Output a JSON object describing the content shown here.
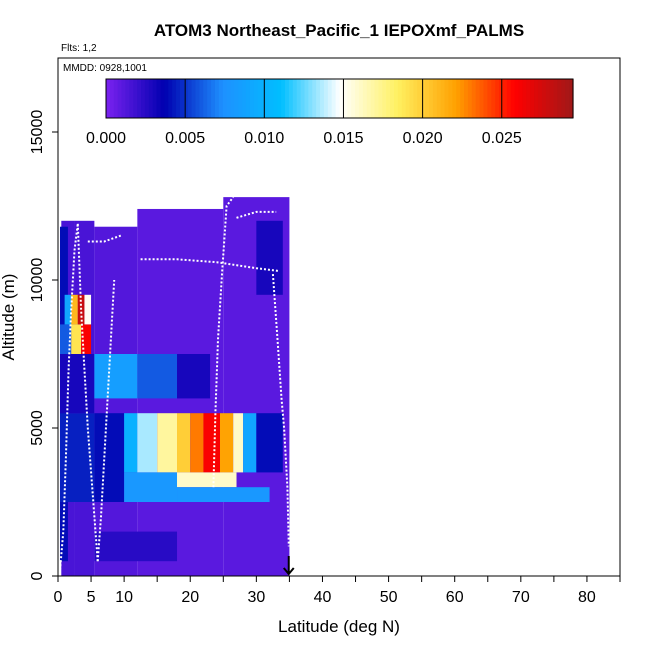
{
  "chart_data": {
    "type": "heatmap",
    "title": "ATOM3 Northeast_Pacific_1 IEPOXmf_PALMS",
    "annotations": [
      "Flts: 1,2",
      "MMDD: 0928,1001"
    ],
    "xlabel": "Latitude (deg N)",
    "ylabel": "Altitude (m)",
    "xlim": [
      0,
      85
    ],
    "ylim": [
      0,
      17500
    ],
    "x_ticks": [
      0,
      5,
      10,
      20,
      30,
      40,
      50,
      60,
      70,
      80
    ],
    "x_minor_ticks": [
      15,
      25,
      35,
      45,
      55,
      65,
      75,
      85
    ],
    "y_ticks": [
      0,
      5000,
      10000,
      15000
    ],
    "colorbar": {
      "range": [
        0,
        0.0295
      ],
      "ticks": [
        0.0,
        0.005,
        0.01,
        0.015,
        0.02,
        0.025
      ],
      "tick_labels": [
        "0.000",
        "0.005",
        "0.010",
        "0.015",
        "0.020",
        "0.025"
      ],
      "colors": [
        "#7b22f0",
        "#0000b0",
        "#1e90ff",
        "#00bfff",
        "#ffffff",
        "#fff060",
        "#ffa000",
        "#ff0000",
        "#a01818"
      ]
    },
    "cells": [
      {
        "x0": 0.5,
        "x1": 2.5,
        "y0": 0,
        "y1": 12000,
        "v": 0.0015
      },
      {
        "x0": 2.5,
        "x1": 5.5,
        "y0": 0,
        "y1": 12000,
        "v": 0.0015
      },
      {
        "x0": 5.5,
        "x1": 12,
        "y0": 0,
        "y1": 11800,
        "v": 0.0012
      },
      {
        "x0": 12,
        "x1": 25,
        "y0": 0,
        "y1": 12400,
        "v": 0.001
      },
      {
        "x0": 25,
        "x1": 35,
        "y0": 0,
        "y1": 12800,
        "v": 0.001
      },
      {
        "x0": 0.3,
        "x1": 1.5,
        "y0": 500,
        "y1": 11800,
        "v": 0.004
      },
      {
        "x0": 0.3,
        "x1": 5.5,
        "y0": 2500,
        "y1": 5500,
        "v": 0.0045
      },
      {
        "x0": 0.3,
        "x1": 5.5,
        "y0": 5500,
        "y1": 7500,
        "v": 0.003
      },
      {
        "x0": 0.3,
        "x1": 2,
        "y0": 7500,
        "y1": 8500,
        "v": 0.006
      },
      {
        "x0": 2,
        "x1": 3.5,
        "y0": 7500,
        "y1": 8500,
        "v": 0.019
      },
      {
        "x0": 3.5,
        "x1": 5,
        "y0": 7500,
        "y1": 8500,
        "v": 0.026
      },
      {
        "x0": 1,
        "x1": 2,
        "y0": 8500,
        "y1": 9500,
        "v": 0.009
      },
      {
        "x0": 2,
        "x1": 3,
        "y0": 8500,
        "y1": 9500,
        "v": 0.021
      },
      {
        "x0": 3,
        "x1": 4,
        "y0": 8500,
        "y1": 9500,
        "v": 0.028
      },
      {
        "x0": 4,
        "x1": 5,
        "y0": 8500,
        "y1": 9500,
        "v": 0.015
      },
      {
        "x0": 5.5,
        "x1": 12,
        "y0": 6000,
        "y1": 7500,
        "v": 0.0085
      },
      {
        "x0": 12,
        "x1": 18,
        "y0": 6000,
        "y1": 7500,
        "v": 0.006
      },
      {
        "x0": 18,
        "x1": 23,
        "y0": 6000,
        "y1": 7500,
        "v": 0.003
      },
      {
        "x0": 5.5,
        "x1": 10,
        "y0": 2500,
        "y1": 5500,
        "v": 0.004
      },
      {
        "x0": 10,
        "x1": 12,
        "y0": 3500,
        "y1": 5500,
        "v": 0.01
      },
      {
        "x0": 12,
        "x1": 15,
        "y0": 3500,
        "y1": 5500,
        "v": 0.0135
      },
      {
        "x0": 15,
        "x1": 18,
        "y0": 3500,
        "y1": 5500,
        "v": 0.017
      },
      {
        "x0": 18,
        "x1": 20,
        "y0": 3500,
        "y1": 5500,
        "v": 0.02
      },
      {
        "x0": 20,
        "x1": 22,
        "y0": 3500,
        "y1": 5500,
        "v": 0.023
      },
      {
        "x0": 22,
        "x1": 24.5,
        "y0": 3500,
        "y1": 5500,
        "v": 0.026
      },
      {
        "x0": 24.5,
        "x1": 26.5,
        "y0": 3500,
        "y1": 5500,
        "v": 0.022
      },
      {
        "x0": 26.5,
        "x1": 28,
        "y0": 3500,
        "y1": 5500,
        "v": 0.016
      },
      {
        "x0": 28,
        "x1": 30,
        "y0": 3500,
        "y1": 5500,
        "v": 0.009
      },
      {
        "x0": 30,
        "x1": 34,
        "y0": 3500,
        "y1": 5500,
        "v": 0.004
      },
      {
        "x0": 10,
        "x1": 18,
        "y0": 2500,
        "y1": 3500,
        "v": 0.008
      },
      {
        "x0": 18,
        "x1": 27,
        "y0": 3000,
        "y1": 3500,
        "v": 0.016
      },
      {
        "x0": 18,
        "x1": 32,
        "y0": 2500,
        "y1": 3000,
        "v": 0.008
      },
      {
        "x0": 5.5,
        "x1": 18,
        "y0": 500,
        "y1": 1500,
        "v": 0.0025
      },
      {
        "x0": 30,
        "x1": 34,
        "y0": 9500,
        "y1": 12000,
        "v": 0.003
      }
    ],
    "flight_track": [
      [
        [
          0.3,
          200
        ],
        [
          0.8,
          1500
        ],
        [
          1.2,
          4000
        ],
        [
          1.6,
          7000
        ],
        [
          2,
          9000
        ],
        [
          2.5,
          11000
        ],
        [
          3,
          11900
        ]
      ],
      [
        [
          3,
          11900
        ],
        [
          3.5,
          9000
        ],
        [
          4,
          7000
        ],
        [
          4.5,
          5000
        ],
        [
          5,
          3500
        ],
        [
          5.5,
          2000
        ],
        [
          6,
          500
        ]
      ],
      [
        [
          6,
          500
        ],
        [
          6.5,
          2000
        ],
        [
          7,
          4000
        ],
        [
          7.5,
          6000
        ],
        [
          8,
          8000
        ],
        [
          8.5,
          10000
        ]
      ],
      [
        [
          4.5,
          11300
        ],
        [
          7,
          11300
        ],
        [
          9.5,
          11500
        ]
      ],
      [
        [
          12.5,
          10700
        ],
        [
          18,
          10700
        ],
        [
          24,
          10600
        ],
        [
          30,
          10400
        ],
        [
          33.5,
          10300
        ]
      ],
      [
        [
          23.5,
          3000
        ],
        [
          23.8,
          5500
        ],
        [
          24.2,
          8000
        ],
        [
          24.8,
          10200
        ],
        [
          25.5,
          12500
        ],
        [
          26.5,
          12800
        ]
      ],
      [
        [
          27,
          12100
        ],
        [
          30,
          12300
        ],
        [
          33,
          12300
        ]
      ],
      [
        [
          32.5,
          10200
        ],
        [
          33.2,
          8000
        ],
        [
          33.8,
          6000
        ],
        [
          34.2,
          5000
        ],
        [
          34.7,
          3000
        ],
        [
          34.9,
          1000
        ]
      ]
    ],
    "marker": {
      "type": "down-arrow",
      "x": 34.9,
      "y": 0
    }
  }
}
